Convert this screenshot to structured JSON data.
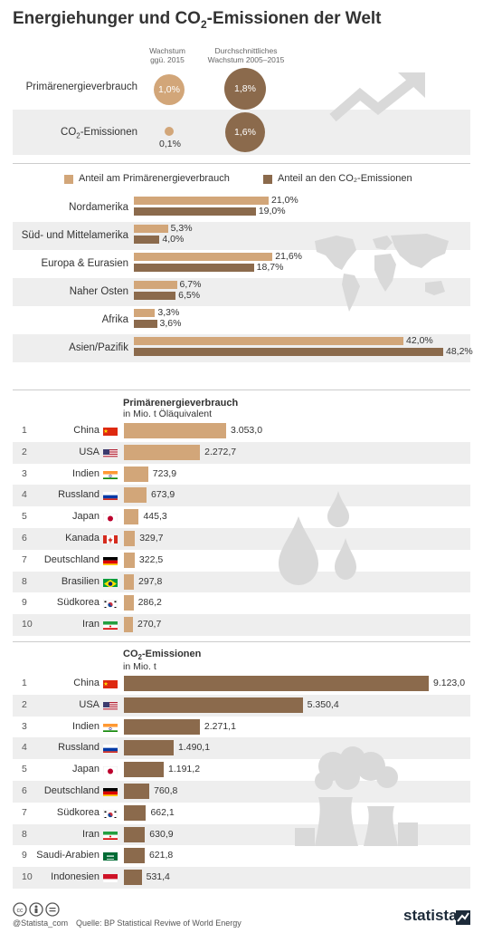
{
  "title_pre": "Energiehunger und CO",
  "title_sub": "2",
  "title_post": "-Emissionen der Welt",
  "growth": {
    "col1_header": [
      "Wachstum",
      "ggü. 2015"
    ],
    "col2_header": [
      "Durchschnittliches",
      "Wachstum 2005–2015"
    ],
    "rows": [
      {
        "label_pre": "Primärenergieverbrauch",
        "label_sub": "",
        "label_post": "",
        "v2015": "1,0%",
        "v2015_num": 1.0,
        "avg": "1,8%",
        "avg_num": 1.8
      },
      {
        "label_pre": "CO",
        "label_sub": "2",
        "label_post": "-Emissionen",
        "v2015": "0,1%",
        "v2015_num": 0.1,
        "avg": "1,6%",
        "avg_num": 1.6
      }
    ]
  },
  "colors": {
    "light": "#d2a679",
    "dark": "#8b6a4c",
    "rowbg": "#eeeeee",
    "text": "#333333"
  },
  "chart_data": [
    {
      "type": "bar",
      "legend_pos": "top",
      "series": [
        {
          "name": "Anteil am Primärenergieverbrauch",
          "color": "#d2a679",
          "values": [
            21.0,
            5.3,
            21.6,
            6.7,
            3.3,
            42.0
          ],
          "labels": [
            "21,0%",
            "5,3%",
            "21,6%",
            "6,7%",
            "3,3%",
            "42,0%"
          ]
        },
        {
          "name": "Anteil an den CO₂-Emissionen",
          "color": "#8b6a4c",
          "values": [
            19.0,
            4.0,
            18.7,
            6.5,
            3.6,
            48.2
          ],
          "labels": [
            "19,0%",
            "4,0%",
            "18,7%",
            "6,5%",
            "3,6%",
            "48,2%"
          ]
        }
      ],
      "categories": [
        "Nordamerika",
        "Süd- und Mittelamerika",
        "Europa & Eurasien",
        "Naher Osten",
        "Afrika",
        "Asien/Pazifik"
      ]
    },
    {
      "type": "bar",
      "title": "Primärenergieverbrauch",
      "subtitle": "in Mio. t Öläquivalent",
      "color": "#d2a679",
      "ranks": [
        "1",
        "2",
        "3",
        "4",
        "5",
        "6",
        "7",
        "8",
        "9",
        "10"
      ],
      "categories": [
        "China",
        "USA",
        "Indien",
        "Russland",
        "Japan",
        "Kanada",
        "Deutschland",
        "Brasilien",
        "Südkorea",
        "Iran"
      ],
      "flags": [
        "cn",
        "us",
        "in",
        "ru",
        "jp",
        "ca",
        "de",
        "br",
        "kr",
        "ir"
      ],
      "values": [
        3053.0,
        2272.7,
        723.9,
        673.9,
        445.3,
        329.7,
        322.5,
        297.8,
        286.2,
        270.7
      ],
      "labels": [
        "3.053,0",
        "2.272,7",
        "723,9",
        "673,9",
        "445,3",
        "329,7",
        "322,5",
        "297,8",
        "286,2",
        "270,7"
      ]
    },
    {
      "type": "bar",
      "title_pre": "CO",
      "title_sub": "2",
      "title_post": "-Emissionen",
      "subtitle": "in Mio. t",
      "color": "#8b6a4c",
      "ranks": [
        "1",
        "2",
        "3",
        "4",
        "5",
        "6",
        "7",
        "8",
        "9",
        "10"
      ],
      "categories": [
        "China",
        "USA",
        "Indien",
        "Russland",
        "Japan",
        "Deutschland",
        "Südkorea",
        "Iran",
        "Saudi-Arabien",
        "Indonesien"
      ],
      "flags": [
        "cn",
        "us",
        "in",
        "ru",
        "jp",
        "de",
        "kr",
        "ir",
        "sa",
        "id"
      ],
      "values": [
        9123.0,
        5350.4,
        2271.1,
        1490.1,
        1191.2,
        760.8,
        662.1,
        630.9,
        621.8,
        531.4
      ],
      "labels": [
        "9.123,0",
        "5.350,4",
        "2.271,1",
        "1.490,1",
        "1.191,2",
        "760,8",
        "662,1",
        "630,9",
        "621,8",
        "531,4"
      ]
    }
  ],
  "footer": {
    "handle": "@Statista_com",
    "source": "Quelle: BP Statistical Reviwe of World Energy",
    "brand": "statista"
  },
  "icons": [
    "trend-arrow-icon",
    "world-map-icon",
    "oil-drops-icon",
    "power-plant-icon",
    "cc-icon",
    "by-icon",
    "nd-icon",
    "statista-logo-icon"
  ]
}
